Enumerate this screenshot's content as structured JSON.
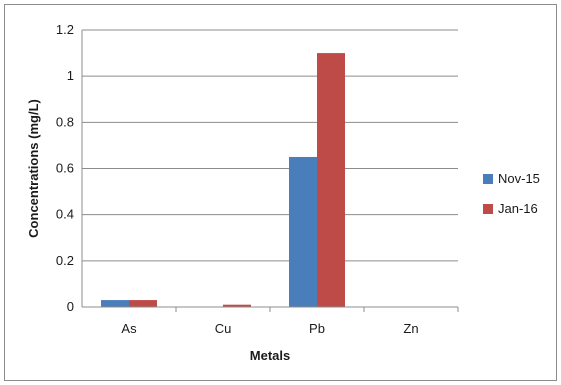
{
  "chart_data": {
    "type": "bar",
    "title": "",
    "xlabel": "Metals",
    "ylabel": "Concentrations (mg/L)",
    "categories": [
      "As",
      "Cu",
      "Pb",
      "Zn"
    ],
    "series": [
      {
        "name": "Nov-15",
        "values": [
          0.03,
          0.0,
          0.65,
          0.0
        ],
        "color": "#4a7ebb"
      },
      {
        "name": "Jan-16",
        "values": [
          0.03,
          0.01,
          1.1,
          0.0
        ],
        "color": "#be4b48"
      }
    ],
    "ylim": [
      0,
      1.2
    ],
    "yticks": [
      "0",
      "0.2",
      "0.4",
      "0.6",
      "0.8",
      "1",
      "1.2"
    ],
    "grid": true,
    "legend_position": "right"
  }
}
